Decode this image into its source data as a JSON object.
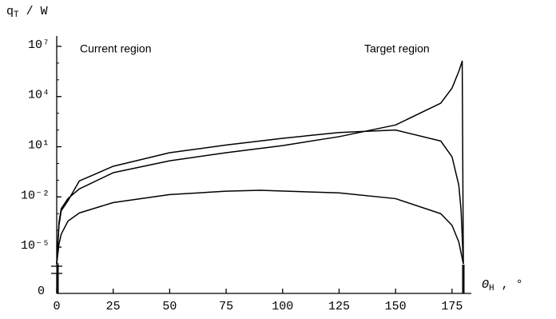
{
  "chart_data": {
    "type": "line",
    "ylabel": "q",
    "ylabel_sub": "T",
    "ylabel_tail": " / W",
    "xlabel": "Θ",
    "xlabel_sub": "H",
    "xlabel_tail": " , °",
    "annotations": [
      "Current region",
      "Target region"
    ],
    "xlim": [
      0,
      180
    ],
    "xticks": [
      0,
      25,
      50,
      75,
      100,
      125,
      150,
      175
    ],
    "ylim": [
      1e-06,
      30000000.0
    ],
    "log_y": true,
    "yticks": [
      {
        "value": 10000000.0,
        "label": "10⁷"
      },
      {
        "value": 10000.0,
        "label": "10⁴"
      },
      {
        "value": 10,
        "label": "10¹"
      },
      {
        "value": 0.01,
        "label": "10⁻²"
      },
      {
        "value": 1e-05,
        "label": "10⁻⁵"
      }
    ],
    "y_zero_label": "0",
    "series": [
      {
        "color": "#000000",
        "x": [
          0,
          1,
          2,
          5,
          10,
          25,
          50,
          75,
          100,
          125,
          150,
          170,
          175,
          178,
          179.5,
          180
        ],
        "values": [
          1e-06,
          0.0003,
          0.002,
          0.008,
          0.03,
          0.28,
          1.45,
          4.4,
          11.7,
          40,
          200,
          4000,
          32000,
          320000,
          1300000,
          1e-06
        ]
      },
      {
        "color": "#000000",
        "x": [
          0,
          1,
          2,
          5,
          10,
          25,
          50,
          75,
          100,
          125,
          150,
          170,
          175,
          178,
          179,
          180
        ],
        "values": [
          1e-06,
          0.0002,
          0.0015,
          0.006,
          0.09,
          0.68,
          4.4,
          12.6,
          32,
          71,
          100,
          22,
          2.5,
          0.05,
          0.0016,
          1e-06
        ]
      },
      {
        "color": "#000000",
        "x": [
          0,
          1,
          2,
          5,
          10,
          25,
          50,
          75,
          90,
          125,
          150,
          170,
          175,
          178,
          180
        ],
        "values": [
          1e-06,
          1.5e-05,
          6e-05,
          0.00036,
          0.0011,
          0.0046,
          0.0138,
          0.022,
          0.025,
          0.0174,
          0.0079,
          0.001,
          0.0002,
          2e-05,
          1e-06
        ]
      }
    ]
  }
}
